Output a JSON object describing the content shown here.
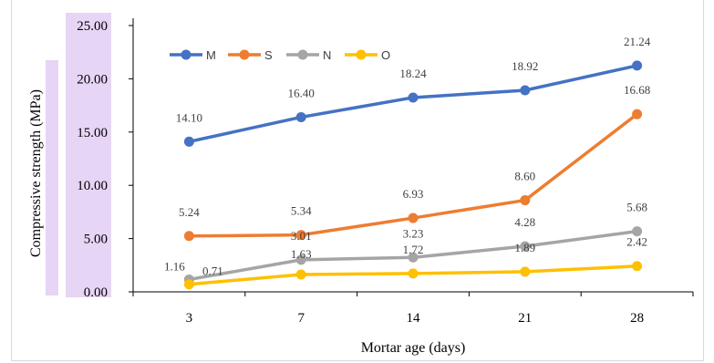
{
  "chart_data": {
    "type": "line",
    "title": "",
    "xlabel": "Mortar age (days)",
    "ylabel": "Compressive strength (MPa)",
    "categories": [
      "3",
      "7",
      "14",
      "21",
      "28"
    ],
    "ylim": [
      0,
      25
    ],
    "yticks": [
      "0.00",
      "5.00",
      "10.00",
      "15.00",
      "20.00",
      "25.00"
    ],
    "ytick_values": [
      0,
      5,
      10,
      15,
      20,
      25
    ],
    "grid": false,
    "legend_position": "top-left",
    "series": [
      {
        "name": "M",
        "color": "#4472c4",
        "values": [
          14.1,
          16.4,
          18.24,
          18.92,
          21.24
        ],
        "labels": [
          "14.10",
          "16.40",
          "18.24",
          "18.92",
          "21.24"
        ]
      },
      {
        "name": "S",
        "color": "#ed7d31",
        "values": [
          5.24,
          5.34,
          6.93,
          8.6,
          16.68
        ],
        "labels": [
          "5.24",
          "5.34",
          "6.93",
          "8.60",
          "16.68"
        ]
      },
      {
        "name": "N",
        "color": "#a5a5a5",
        "values": [
          1.16,
          3.01,
          3.23,
          4.28,
          5.68
        ],
        "labels": [
          "1.16",
          "3.01",
          "3.23",
          "4.28",
          "5.68"
        ]
      },
      {
        "name": "O",
        "color": "#ffc000",
        "values": [
          0.71,
          1.63,
          1.72,
          1.89,
          2.42
        ],
        "labels": [
          "0.71",
          "1.63",
          "1.72",
          "1.89",
          "2.42"
        ]
      }
    ],
    "ytick_highlight_color": "#e6d5f5"
  }
}
